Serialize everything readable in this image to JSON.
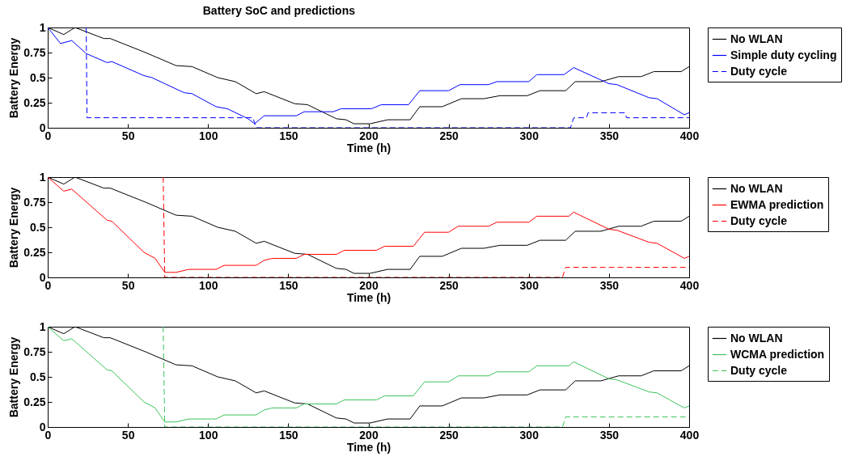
{
  "chart_data": [
    {
      "type": "line",
      "title": "Battery SoC and predictions",
      "xlabel": "Time (h)",
      "ylabel": "Battery Energy",
      "xlim": [
        0,
        400
      ],
      "ylim": [
        0,
        1
      ],
      "xticks": [
        0,
        50,
        100,
        150,
        200,
        250,
        300,
        350,
        400
      ],
      "yticks": [
        0,
        0.25,
        0.5,
        0.75,
        1
      ],
      "legend": "top right",
      "grid": false,
      "series": [
        {
          "name": "No WLAN",
          "color": "#000000",
          "x": [
            0,
            10,
            17,
            35,
            39,
            61,
            80,
            90,
            106,
            117,
            130,
            135,
            154,
            162,
            180,
            186,
            191,
            201,
            212,
            226,
            232,
            246,
            258,
            272,
            282,
            299,
            307,
            323,
            329,
            345,
            356,
            370,
            378,
            395,
            400
          ],
          "values": [
            1,
            0.93,
            1,
            0.89,
            0.89,
            0.75,
            0.62,
            0.61,
            0.5,
            0.46,
            0.34,
            0.36,
            0.24,
            0.23,
            0.09,
            0.08,
            0.04,
            0.04,
            0.08,
            0.08,
            0.21,
            0.21,
            0.29,
            0.29,
            0.32,
            0.32,
            0.37,
            0.37,
            0.46,
            0.46,
            0.51,
            0.51,
            0.56,
            0.56,
            0.61
          ]
        },
        {
          "name": "Simple duty cycling",
          "color": "#0000ff",
          "x": [
            0,
            8,
            15,
            24,
            37,
            40,
            60,
            65,
            85,
            90,
            105,
            112,
            125,
            129,
            135,
            155,
            160,
            178,
            183,
            202,
            208,
            225,
            232,
            250,
            257,
            275,
            280,
            300,
            305,
            322,
            328,
            350,
            355,
            375,
            380,
            397,
            400
          ],
          "values": [
            1,
            0.84,
            0.87,
            0.74,
            0.65,
            0.66,
            0.52,
            0.5,
            0.35,
            0.34,
            0.21,
            0.19,
            0.09,
            0.04,
            0.12,
            0.12,
            0.16,
            0.16,
            0.19,
            0.19,
            0.23,
            0.23,
            0.37,
            0.37,
            0.43,
            0.43,
            0.46,
            0.46,
            0.53,
            0.53,
            0.6,
            0.44,
            0.43,
            0.3,
            0.29,
            0.13,
            0.15
          ]
        },
        {
          "name": "Duty cycle",
          "color": "#0000ff",
          "line_style": "dashed",
          "x": [
            24,
            24.5,
            128,
            130,
            326,
            328,
            336,
            337,
            360,
            361,
            400
          ],
          "values": [
            1,
            0.1,
            0.1,
            0,
            0,
            0.1,
            0.1,
            0.15,
            0.15,
            0.1,
            0.1
          ]
        }
      ]
    },
    {
      "type": "line",
      "xlabel": "Time (h)",
      "ylabel": "Battery Energy",
      "xlim": [
        0,
        400
      ],
      "ylim": [
        0,
        1
      ],
      "xticks": [
        0,
        50,
        100,
        150,
        200,
        250,
        300,
        350,
        400
      ],
      "yticks": [
        0,
        0.25,
        0.5,
        0.75,
        1
      ],
      "legend": "top right",
      "grid": false,
      "series": [
        {
          "name": "No WLAN",
          "color": "#000000",
          "x": [
            0,
            10,
            17,
            35,
            39,
            61,
            80,
            90,
            106,
            117,
            130,
            135,
            154,
            162,
            180,
            186,
            191,
            201,
            212,
            226,
            232,
            246,
            258,
            272,
            282,
            299,
            307,
            323,
            329,
            345,
            356,
            370,
            378,
            395,
            400
          ],
          "values": [
            1,
            0.93,
            1,
            0.89,
            0.89,
            0.75,
            0.62,
            0.61,
            0.5,
            0.46,
            0.34,
            0.36,
            0.24,
            0.23,
            0.09,
            0.08,
            0.04,
            0.04,
            0.08,
            0.08,
            0.21,
            0.21,
            0.29,
            0.29,
            0.32,
            0.32,
            0.37,
            0.37,
            0.46,
            0.46,
            0.51,
            0.51,
            0.56,
            0.56,
            0.61
          ]
        },
        {
          "name": "EWMA prediction",
          "color": "#ff0000",
          "x": [
            0,
            10,
            15,
            37,
            40,
            60,
            67,
            73,
            80,
            88,
            105,
            110,
            130,
            135,
            140,
            155,
            160,
            180,
            185,
            205,
            210,
            228,
            235,
            250,
            256,
            275,
            280,
            300,
            305,
            325,
            328,
            350,
            355,
            375,
            380,
            397,
            400
          ],
          "values": [
            1,
            0.86,
            0.88,
            0.57,
            0.56,
            0.25,
            0.19,
            0.05,
            0.05,
            0.08,
            0.08,
            0.12,
            0.12,
            0.17,
            0.19,
            0.19,
            0.23,
            0.23,
            0.27,
            0.27,
            0.31,
            0.31,
            0.45,
            0.45,
            0.51,
            0.51,
            0.55,
            0.55,
            0.61,
            0.61,
            0.65,
            0.48,
            0.47,
            0.35,
            0.34,
            0.19,
            0.21
          ]
        },
        {
          "name": "Duty cycle",
          "color": "#ff0000",
          "line_style": "dashed",
          "x": [
            72,
            73,
            321,
            323,
            400
          ],
          "values": [
            1,
            0,
            0,
            0.1,
            0.1
          ]
        }
      ]
    },
    {
      "type": "line",
      "xlabel": "Time (h)",
      "ylabel": "Battery Energy",
      "xlim": [
        0,
        400
      ],
      "ylim": [
        0,
        1
      ],
      "xticks": [
        0,
        50,
        100,
        150,
        200,
        250,
        300,
        350,
        400
      ],
      "yticks": [
        0,
        0.25,
        0.5,
        0.75,
        1
      ],
      "legend": "top right",
      "grid": false,
      "series": [
        {
          "name": "No WLAN",
          "color": "#000000",
          "x": [
            0,
            10,
            17,
            35,
            39,
            61,
            80,
            90,
            106,
            117,
            130,
            135,
            154,
            162,
            180,
            186,
            191,
            201,
            212,
            226,
            232,
            246,
            258,
            272,
            282,
            299,
            307,
            323,
            329,
            345,
            356,
            370,
            378,
            395,
            400
          ],
          "values": [
            1,
            0.93,
            1,
            0.89,
            0.89,
            0.75,
            0.62,
            0.61,
            0.5,
            0.46,
            0.34,
            0.36,
            0.24,
            0.23,
            0.09,
            0.08,
            0.04,
            0.04,
            0.08,
            0.08,
            0.21,
            0.21,
            0.29,
            0.29,
            0.32,
            0.32,
            0.37,
            0.37,
            0.46,
            0.46,
            0.51,
            0.51,
            0.56,
            0.56,
            0.61
          ]
        },
        {
          "name": "WCMA prediction",
          "color": "#3cc35a",
          "x": [
            0,
            10,
            15,
            37,
            40,
            60,
            67,
            73,
            80,
            88,
            105,
            110,
            130,
            135,
            140,
            155,
            160,
            180,
            185,
            205,
            210,
            228,
            235,
            250,
            256,
            275,
            280,
            300,
            305,
            325,
            328,
            350,
            355,
            375,
            380,
            397,
            400
          ],
          "values": [
            1,
            0.86,
            0.88,
            0.57,
            0.56,
            0.25,
            0.19,
            0.05,
            0.05,
            0.08,
            0.08,
            0.12,
            0.12,
            0.17,
            0.19,
            0.19,
            0.23,
            0.23,
            0.27,
            0.27,
            0.31,
            0.31,
            0.45,
            0.45,
            0.51,
            0.51,
            0.55,
            0.55,
            0.61,
            0.61,
            0.65,
            0.48,
            0.47,
            0.35,
            0.34,
            0.19,
            0.21
          ]
        },
        {
          "name": "Duty cycle",
          "color": "#3cc35a",
          "line_style": "dashed",
          "x": [
            72,
            73,
            321,
            323,
            400
          ],
          "values": [
            1,
            0,
            0,
            0.1,
            0.1
          ]
        }
      ]
    }
  ]
}
